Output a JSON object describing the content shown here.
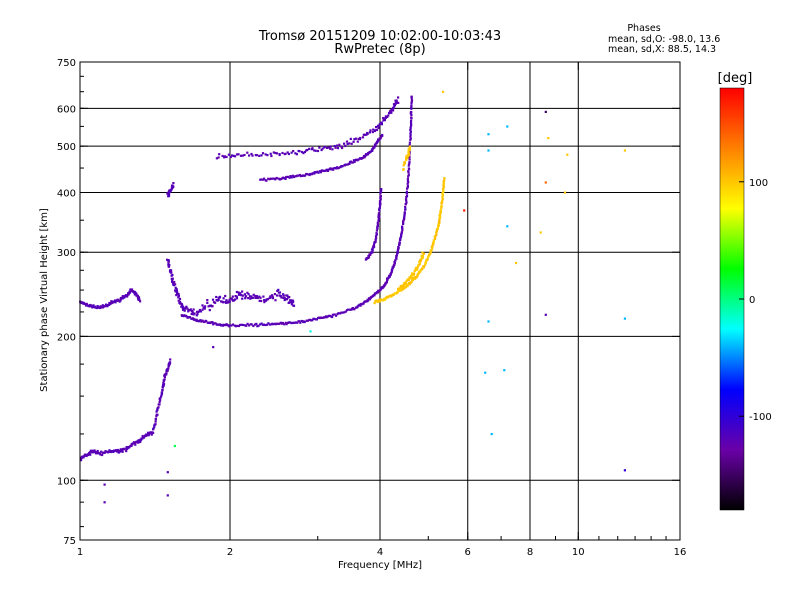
{
  "header": {
    "title_line1": "Tromsø 20151209 10:02:00-10:03:43",
    "title_line2": "RwPretec (8p)",
    "stats_heading": "Phases",
    "stats_line_o": "mean, sd,O: -98.0, 13.6",
    "stats_line_x": "mean, sd,X:  88.5, 14.3"
  },
  "chart_data": {
    "type": "scatter",
    "xlabel": "Frequency [MHz]",
    "ylabel": "Stationary phase Virtual Height [km]",
    "x_scale": "log",
    "y_scale": "log",
    "xlim": [
      1,
      16
    ],
    "ylim": [
      75,
      750
    ],
    "x_ticks": [
      {
        "value": 1,
        "label": "1"
      },
      {
        "value": 2,
        "label": "2"
      },
      {
        "value": 4,
        "label": "4"
      },
      {
        "value": 6,
        "label": "6"
      },
      {
        "value": 8,
        "label": "8"
      },
      {
        "value": 10,
        "label": "10"
      },
      {
        "value": 16,
        "label": "16"
      }
    ],
    "x_gridlines": [
      2,
      4,
      6,
      8,
      10
    ],
    "y_ticks": [
      {
        "value": 75,
        "label": "75"
      },
      {
        "value": 100,
        "label": "100"
      },
      {
        "value": 200,
        "label": "200"
      },
      {
        "value": 300,
        "label": "300"
      },
      {
        "value": 400,
        "label": "400"
      },
      {
        "value": 500,
        "label": "500"
      },
      {
        "value": 600,
        "label": "600"
      },
      {
        "value": 750,
        "label": "750"
      }
    ],
    "y_gridlines": [
      100,
      200,
      300,
      400,
      500,
      600
    ],
    "grid": true,
    "colorbar": {
      "label": "[deg]",
      "range": [
        -180,
        180
      ],
      "ticks": [
        {
          "value": 100,
          "label": "100"
        },
        {
          "value": 0,
          "label": "0"
        },
        {
          "value": -100,
          "label": "-100"
        }
      ],
      "colors": [
        "#000000",
        "#6a00a8",
        "#0000ff",
        "#00ffff",
        "#00ff00",
        "#ffff00",
        "#ff8000",
        "#ff0000"
      ]
    },
    "traces": [
      {
        "name": "",
        "phase": -120,
        "spread": [
          0.004,
          0.01
        ],
        "points": [
          [
            1.0,
            236
          ],
          [
            1.04,
            232
          ],
          [
            1.08,
            230
          ],
          [
            1.12,
            231
          ],
          [
            1.16,
            236
          ],
          [
            1.2,
            238
          ],
          [
            1.24,
            244
          ],
          [
            1.27,
            250
          ],
          [
            1.3,
            244
          ],
          [
            1.32,
            237
          ]
        ]
      },
      {
        "name": "",
        "phase": -120,
        "spread": [
          0.004,
          0.012
        ],
        "points": [
          [
            1.0,
            110
          ],
          [
            1.03,
            113
          ],
          [
            1.06,
            115
          ],
          [
            1.1,
            114
          ],
          [
            1.15,
            115
          ],
          [
            1.2,
            115
          ],
          [
            1.25,
            117
          ],
          [
            1.3,
            120
          ],
          [
            1.35,
            124
          ],
          [
            1.4,
            126
          ],
          [
            1.43,
            140
          ],
          [
            1.46,
            152
          ],
          [
            1.48,
            165
          ],
          [
            1.5,
            172
          ],
          [
            1.52,
            178
          ]
        ]
      },
      {
        "name": "",
        "phase": -120,
        "spread": [
          0.006,
          0.03
        ],
        "points": [
          [
            1.5,
            290
          ],
          [
            1.52,
            270
          ],
          [
            1.55,
            255
          ],
          [
            1.58,
            240
          ],
          [
            1.62,
            228
          ],
          [
            1.7,
            225
          ],
          [
            1.8,
            232
          ],
          [
            1.9,
            240
          ],
          [
            2.0,
            238
          ],
          [
            2.1,
            244
          ],
          [
            2.2,
            242
          ],
          [
            2.35,
            238
          ],
          [
            2.5,
            245
          ],
          [
            2.6,
            240
          ],
          [
            2.7,
            232
          ]
        ]
      },
      {
        "name": "",
        "phase": -120,
        "spread": [
          0.003,
          0.008
        ],
        "points": [
          [
            1.6,
            222
          ],
          [
            1.7,
            217
          ],
          [
            1.8,
            214
          ],
          [
            1.9,
            212
          ],
          [
            2.0,
            211
          ],
          [
            2.2,
            211
          ],
          [
            2.4,
            212
          ],
          [
            2.6,
            213
          ],
          [
            2.8,
            215
          ],
          [
            3.0,
            218
          ],
          [
            3.2,
            221
          ],
          [
            3.5,
            228
          ],
          [
            3.7,
            234
          ],
          [
            3.85,
            242
          ],
          [
            4.0,
            250
          ],
          [
            4.1,
            258
          ],
          [
            4.2,
            270
          ],
          [
            4.28,
            285
          ],
          [
            4.35,
            305
          ],
          [
            4.42,
            330
          ],
          [
            4.48,
            360
          ],
          [
            4.53,
            400
          ],
          [
            4.57,
            450
          ],
          [
            4.6,
            520
          ],
          [
            4.62,
            580
          ],
          [
            4.63,
            640
          ]
        ]
      },
      {
        "name": "",
        "phase": -120,
        "spread": [
          0.004,
          0.008
        ],
        "points": [
          [
            2.3,
            425
          ],
          [
            2.5,
            428
          ],
          [
            2.7,
            432
          ],
          [
            2.9,
            438
          ],
          [
            3.1,
            444
          ],
          [
            3.3,
            452
          ],
          [
            3.5,
            462
          ],
          [
            3.7,
            475
          ],
          [
            3.85,
            490
          ],
          [
            3.95,
            510
          ],
          [
            4.05,
            530
          ]
        ]
      },
      {
        "name": "",
        "phase": -120,
        "spread": [
          0.006,
          0.02
        ],
        "points": [
          [
            1.88,
            475
          ],
          [
            2.1,
            478
          ],
          [
            2.4,
            480
          ],
          [
            2.7,
            485
          ],
          [
            3.0,
            490
          ],
          [
            3.3,
            500
          ],
          [
            3.6,
            515
          ],
          [
            3.9,
            540
          ],
          [
            4.1,
            570
          ],
          [
            4.25,
            600
          ],
          [
            4.35,
            630
          ]
        ]
      },
      {
        "name": "",
        "phase": -120,
        "spread": [
          0.003,
          0.01
        ],
        "points": [
          [
            3.75,
            290
          ],
          [
            3.85,
            300
          ],
          [
            3.92,
            320
          ],
          [
            3.97,
            350
          ],
          [
            4.0,
            380
          ],
          [
            4.02,
            410
          ]
        ]
      },
      {
        "name": "",
        "phase": -120,
        "spread": [
          0.004,
          0.015
        ],
        "points": [
          [
            1.5,
            395
          ],
          [
            1.52,
            405
          ],
          [
            1.54,
            415
          ]
        ]
      },
      {
        "name": "",
        "phase": 100,
        "spread": [
          0.003,
          0.009
        ],
        "points": [
          [
            3.9,
            236
          ],
          [
            4.1,
            240
          ],
          [
            4.3,
            246
          ],
          [
            4.5,
            254
          ],
          [
            4.7,
            265
          ],
          [
            4.9,
            280
          ],
          [
            5.05,
            300
          ],
          [
            5.15,
            320
          ],
          [
            5.25,
            345
          ],
          [
            5.3,
            370
          ],
          [
            5.35,
            400
          ],
          [
            5.38,
            430
          ]
        ]
      },
      {
        "name": "",
        "phase": 100,
        "spread": [
          0.005,
          0.02
        ],
        "points": [
          [
            4.35,
            250
          ],
          [
            4.5,
            258
          ],
          [
            4.65,
            268
          ],
          [
            4.8,
            285
          ],
          [
            4.9,
            300
          ]
        ]
      },
      {
        "name": "",
        "phase": 100,
        "spread": [
          0.004,
          0.02
        ],
        "points": [
          [
            4.45,
            450
          ],
          [
            4.55,
            480
          ],
          [
            4.6,
            500
          ]
        ]
      }
    ],
    "scattered_points": [
      {
        "f": 1.12,
        "h": 90,
        "phase": -120
      },
      {
        "f": 1.5,
        "h": 93,
        "phase": -120
      },
      {
        "f": 1.5,
        "h": 104,
        "phase": -120
      },
      {
        "f": 1.12,
        "h": 98,
        "phase": -120
      },
      {
        "f": 1.55,
        "h": 118,
        "phase": 10
      },
      {
        "f": 1.85,
        "h": 190,
        "phase": -120
      },
      {
        "f": 2.9,
        "h": 205,
        "phase": -20
      },
      {
        "f": 5.35,
        "h": 650,
        "phase": 100
      },
      {
        "f": 6.6,
        "h": 530,
        "phase": -40
      },
      {
        "f": 6.6,
        "h": 490,
        "phase": -40
      },
      {
        "f": 7.2,
        "h": 550,
        "phase": -40
      },
      {
        "f": 7.2,
        "h": 340,
        "phase": -40
      },
      {
        "f": 7.5,
        "h": 285,
        "phase": 100
      },
      {
        "f": 6.6,
        "h": 215,
        "phase": -40
      },
      {
        "f": 6.5,
        "h": 168,
        "phase": -40
      },
      {
        "f": 7.1,
        "h": 170,
        "phase": -40
      },
      {
        "f": 6.7,
        "h": 125,
        "phase": -40
      },
      {
        "f": 8.6,
        "h": 590,
        "phase": -150
      },
      {
        "f": 8.7,
        "h": 520,
        "phase": 100
      },
      {
        "f": 8.4,
        "h": 330,
        "phase": 100
      },
      {
        "f": 8.6,
        "h": 420,
        "phase": 140
      },
      {
        "f": 9.5,
        "h": 480,
        "phase": 100
      },
      {
        "f": 9.4,
        "h": 400,
        "phase": 100
      },
      {
        "f": 8.6,
        "h": 222,
        "phase": -120
      },
      {
        "f": 12.4,
        "h": 490,
        "phase": 100
      },
      {
        "f": 12.4,
        "h": 218,
        "phase": -40
      },
      {
        "f": 12.4,
        "h": 105,
        "phase": -100
      },
      {
        "f": 5.9,
        "h": 367,
        "phase": 170
      }
    ]
  }
}
